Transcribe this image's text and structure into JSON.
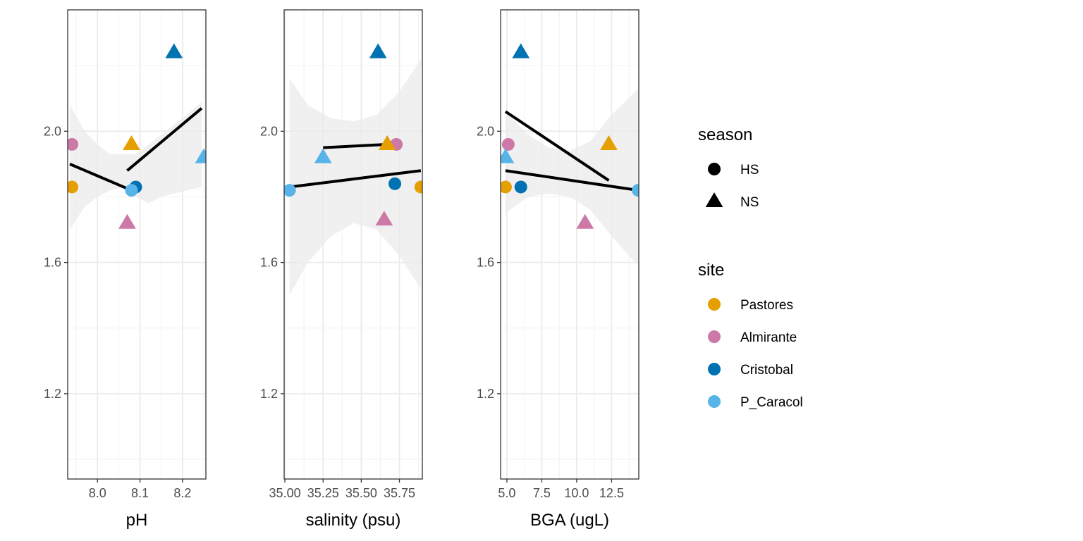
{
  "chart_data": {
    "type": "scatter",
    "colors": {
      "Pastores": "#E69F00",
      "Almirante": "#CC79A7",
      "Cristobal": "#0072B2",
      "P_Caracol": "#56B4E9",
      "fit_line": "#000000",
      "ribbon": "#EBEBEB"
    },
    "legends": {
      "season": {
        "title": "season",
        "entries": [
          {
            "label": "HS",
            "shape": "circle"
          },
          {
            "label": "NS",
            "shape": "triangle"
          }
        ]
      },
      "site": {
        "title": "site",
        "entries": [
          "Pastores",
          "Almirante",
          "Cristobal",
          "P_Caracol"
        ]
      }
    },
    "legend_placement": "right",
    "grid": true,
    "panels": [
      {
        "xlabel": "pH",
        "xlim": [
          7.93,
          8.255
        ],
        "ylim": [
          0.94,
          2.37
        ],
        "xticks": [
          8.0,
          8.1,
          8.2
        ],
        "xtick_labels": [
          "8.0",
          "8.1",
          "8.2"
        ],
        "yticks": [
          1.2,
          1.6,
          2.0
        ],
        "ytick_labels": [
          "1.2",
          "1.6",
          "2.0"
        ],
        "points": [
          {
            "site": "Pastores",
            "season": "HS",
            "x": 7.94,
            "y": 1.83
          },
          {
            "site": "Almirante",
            "season": "HS",
            "x": 7.94,
            "y": 1.96
          },
          {
            "site": "Cristobal",
            "season": "HS",
            "x": 8.09,
            "y": 1.83
          },
          {
            "site": "P_Caracol",
            "season": "HS",
            "x": 8.08,
            "y": 1.82
          },
          {
            "site": "Pastores",
            "season": "NS",
            "x": 8.08,
            "y": 1.96
          },
          {
            "site": "Almirante",
            "season": "NS",
            "x": 8.07,
            "y": 1.72
          },
          {
            "site": "Cristobal",
            "season": "NS",
            "x": 8.18,
            "y": 2.24
          },
          {
            "site": "P_Caracol",
            "season": "NS",
            "x": 8.25,
            "y": 1.92
          }
        ],
        "fits": [
          {
            "season": "HS",
            "x": [
              7.935,
              8.08
            ],
            "y": [
              1.9,
              1.82
            ]
          },
          {
            "season": "NS",
            "x": [
              8.07,
              8.245
            ],
            "y": [
              1.88,
              2.07
            ]
          }
        ],
        "ribbon": {
          "x": [
            7.935,
            7.97,
            8.0,
            8.03,
            8.06,
            8.09,
            8.12,
            8.15,
            8.18,
            8.21,
            8.245
          ],
          "lower": [
            1.7,
            1.77,
            1.8,
            1.82,
            1.83,
            1.8,
            1.78,
            1.8,
            1.81,
            1.82,
            1.83
          ],
          "upper": [
            2.08,
            2.0,
            1.96,
            1.93,
            1.93,
            1.93,
            1.96,
            1.99,
            2.02,
            2.05,
            2.09
          ]
        }
      },
      {
        "xlabel": "salinity (psu)",
        "xlim": [
          34.995,
          35.9
        ],
        "ylim": [
          0.94,
          2.37
        ],
        "xticks": [
          35.0,
          35.25,
          35.5,
          35.75
        ],
        "xtick_labels": [
          "35.00",
          "35.25",
          "35.50",
          "35.75"
        ],
        "yticks": [
          1.2,
          1.6,
          2.0
        ],
        "ytick_labels": [
          "1.2",
          "1.6",
          "2.0"
        ],
        "points": [
          {
            "site": "P_Caracol",
            "season": "HS",
            "x": 35.03,
            "y": 1.82
          },
          {
            "site": "Almirante",
            "season": "HS",
            "x": 35.73,
            "y": 1.96
          },
          {
            "site": "Cristobal",
            "season": "HS",
            "x": 35.72,
            "y": 1.84
          },
          {
            "site": "Pastores",
            "season": "HS",
            "x": 35.89,
            "y": 1.83
          },
          {
            "site": "P_Caracol",
            "season": "NS",
            "x": 35.25,
            "y": 1.92
          },
          {
            "site": "Cristobal",
            "season": "NS",
            "x": 35.61,
            "y": 2.24
          },
          {
            "site": "Pastores",
            "season": "NS",
            "x": 35.67,
            "y": 1.96
          },
          {
            "site": "Almirante",
            "season": "NS",
            "x": 35.65,
            "y": 1.73
          }
        ],
        "fits": [
          {
            "season": "HS",
            "x": [
              35.03,
              35.89
            ],
            "y": [
              1.83,
              1.88
            ]
          },
          {
            "season": "NS",
            "x": [
              35.25,
              35.67
            ],
            "y": [
              1.95,
              1.96
            ]
          }
        ],
        "ribbon": {
          "x": [
            35.03,
            35.15,
            35.3,
            35.45,
            35.6,
            35.75,
            35.89
          ],
          "lower": [
            1.5,
            1.6,
            1.68,
            1.72,
            1.7,
            1.62,
            1.52
          ],
          "upper": [
            2.16,
            2.08,
            2.04,
            2.03,
            2.05,
            2.12,
            2.22
          ]
        }
      },
      {
        "xlabel": "BGA (ugL)",
        "xlim": [
          4.55,
          14.45
        ],
        "ylim": [
          0.94,
          2.37
        ],
        "xticks": [
          5.0,
          7.5,
          10.0,
          12.5
        ],
        "xtick_labels": [
          "5.0",
          "7.5",
          "10.0",
          "12.5"
        ],
        "yticks": [
          1.2,
          1.6,
          2.0
        ],
        "ytick_labels": [
          "1.2",
          "1.6",
          "2.0"
        ],
        "points": [
          {
            "site": "Pastores",
            "season": "HS",
            "x": 4.9,
            "y": 1.83
          },
          {
            "site": "Almirante",
            "season": "HS",
            "x": 5.1,
            "y": 1.96
          },
          {
            "site": "Cristobal",
            "season": "HS",
            "x": 6.0,
            "y": 1.83
          },
          {
            "site": "P_Caracol",
            "season": "HS",
            "x": 14.4,
            "y": 1.82
          },
          {
            "site": "P_Caracol",
            "season": "NS",
            "x": 4.9,
            "y": 1.92
          },
          {
            "site": "Cristobal",
            "season": "NS",
            "x": 6.0,
            "y": 2.24
          },
          {
            "site": "Almirante",
            "season": "NS",
            "x": 10.6,
            "y": 1.72
          },
          {
            "site": "Pastores",
            "season": "NS",
            "x": 12.3,
            "y": 1.96
          }
        ],
        "fits": [
          {
            "season": "HS",
            "x": [
              4.9,
              14.4
            ],
            "y": [
              1.88,
              1.82
            ]
          },
          {
            "season": "NS",
            "x": [
              4.9,
              12.3
            ],
            "y": [
              2.06,
              1.85
            ]
          }
        ],
        "ribbon": {
          "x": [
            4.9,
            6.5,
            8.0,
            9.5,
            11.0,
            12.5,
            14.4
          ],
          "lower": [
            1.75,
            1.8,
            1.81,
            1.8,
            1.76,
            1.68,
            1.59
          ],
          "upper": [
            2.06,
            1.99,
            1.95,
            1.94,
            1.97,
            2.05,
            2.13
          ]
        }
      }
    ]
  }
}
